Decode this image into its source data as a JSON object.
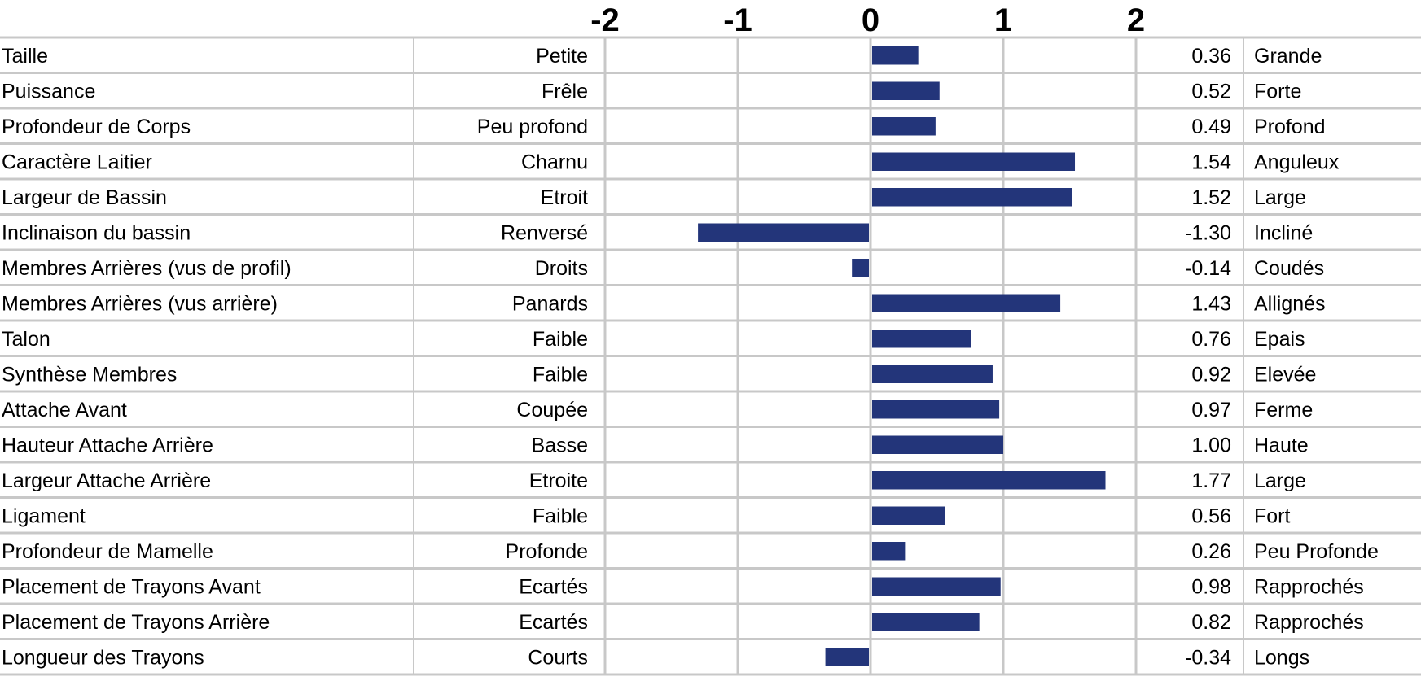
{
  "chart_data": {
    "type": "bar",
    "orientation": "horizontal",
    "x_ticks": [
      -2,
      -1,
      0,
      1,
      2
    ],
    "xlim": [
      -2,
      2
    ],
    "grid": true,
    "bar_color": "#23357A",
    "grid_color": "#C8C8C8",
    "rows": [
      {
        "trait": "Taille",
        "low": "Petite",
        "value": 0.36,
        "value_label": "0.36",
        "high": "Grande"
      },
      {
        "trait": "Puissance",
        "low": "Frêle",
        "value": 0.52,
        "value_label": "0.52",
        "high": "Forte"
      },
      {
        "trait": "Profondeur de Corps",
        "low": "Peu profond",
        "value": 0.49,
        "value_label": "0.49",
        "high": "Profond"
      },
      {
        "trait": "Caractère Laitier",
        "low": "Charnu",
        "value": 1.54,
        "value_label": "1.54",
        "high": "Anguleux"
      },
      {
        "trait": "Largeur de Bassin",
        "low": "Etroit",
        "value": 1.52,
        "value_label": "1.52",
        "high": "Large"
      },
      {
        "trait": "Inclinaison du bassin",
        "low": "Renversé",
        "value": -1.3,
        "value_label": "-1.30",
        "high": "Incliné"
      },
      {
        "trait": "Membres Arrières (vus de profil)",
        "low": "Droits",
        "value": -0.14,
        "value_label": "-0.14",
        "high": "Coudés"
      },
      {
        "trait": "Membres Arrières (vus arrière)",
        "low": "Panards",
        "value": 1.43,
        "value_label": "1.43",
        "high": "Allignés"
      },
      {
        "trait": "Talon",
        "low": "Faible",
        "value": 0.76,
        "value_label": "0.76",
        "high": "Epais"
      },
      {
        "trait": "Synthèse Membres",
        "low": "Faible",
        "value": 0.92,
        "value_label": "0.92",
        "high": "Elevée"
      },
      {
        "trait": "Attache Avant",
        "low": "Coupée",
        "value": 0.97,
        "value_label": "0.97",
        "high": "Ferme"
      },
      {
        "trait": "Hauteur Attache Arrière",
        "low": "Basse",
        "value": 1.0,
        "value_label": "1.00",
        "high": "Haute"
      },
      {
        "trait": "Largeur Attache Arrière",
        "low": "Etroite",
        "value": 1.77,
        "value_label": "1.77",
        "high": "Large"
      },
      {
        "trait": "Ligament",
        "low": "Faible",
        "value": 0.56,
        "value_label": "0.56",
        "high": "Fort"
      },
      {
        "trait": "Profondeur de Mamelle",
        "low": "Profonde",
        "value": 0.26,
        "value_label": "0.26",
        "high": "Peu Profonde"
      },
      {
        "trait": "Placement de Trayons Avant",
        "low": "Ecartés",
        "value": 0.98,
        "value_label": "0.98",
        "high": "Rapprochés"
      },
      {
        "trait": "Placement de Trayons Arrière",
        "low": "Ecartés",
        "value": 0.82,
        "value_label": "0.82",
        "high": "Rapprochés"
      },
      {
        "trait": "Longueur des Trayons",
        "low": "Courts",
        "value": -0.34,
        "value_label": "-0.34",
        "high": "Longs"
      }
    ]
  }
}
